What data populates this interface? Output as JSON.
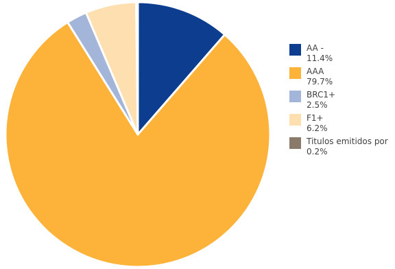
{
  "chart_data": {
    "type": "pie",
    "title": "",
    "legend_position": "right",
    "slices": [
      {
        "label": "AA -",
        "value": 11.4,
        "display": "11.4%",
        "color": "#0d3d8e"
      },
      {
        "label": "AAA",
        "value": 79.7,
        "display": "79.7%",
        "color": "#fdb23a"
      },
      {
        "label": "BRC1+",
        "value": 2.5,
        "display": "2.5%",
        "color": "#a3b5d9"
      },
      {
        "label": "F1+",
        "value": 6.2,
        "display": "6.2%",
        "color": "#fddfb0"
      },
      {
        "label": "Titulos emitidos por",
        "value": 0.2,
        "display": "0.2%",
        "color": "#8a7a6a"
      }
    ]
  }
}
